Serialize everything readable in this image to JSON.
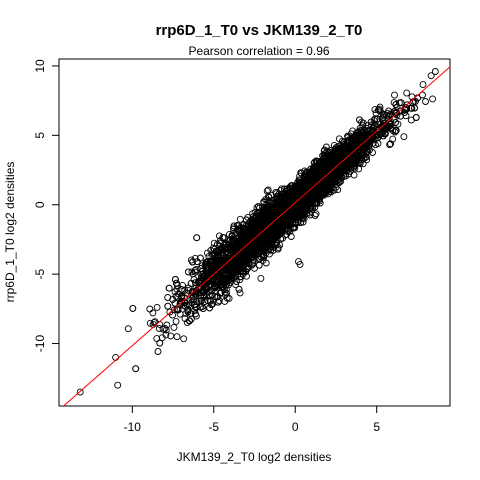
{
  "chart_data": {
    "type": "scatter",
    "title": "rrp6D_1_T0 vs JKM139_2_T0",
    "subtitle": "Pearson correlation =  0.96",
    "xlabel": "JKM139_2_T0 log2 densities",
    "ylabel": "rrp6D_1_T0 log2 densities",
    "xlim": [
      -14.5,
      9.5
    ],
    "ylim": [
      -14.5,
      10.5
    ],
    "xticks": [
      -10,
      -5,
      0,
      5
    ],
    "yticks": [
      -10,
      -5,
      0,
      5,
      10
    ],
    "grid": false,
    "legend": "none",
    "regression_line": {
      "slope": 1.03,
      "intercept": 0.15,
      "color": "#ff0000"
    },
    "point_color": "#000000",
    "distribution": {
      "x_center": -0.5,
      "x_sd": 2.8,
      "x_min": -13.2,
      "x_max": 8.6,
      "residual_sd": 0.7,
      "approx_points": 5000
    },
    "outliers": [
      {
        "x": 8.6,
        "y": 9.6
      },
      {
        "x": -13.2,
        "y": -13.5
      },
      {
        "x": -10.9,
        "y": -13.0
      },
      {
        "x": 0.3,
        "y": -4.3
      },
      {
        "x": 0.2,
        "y": -4.1
      }
    ]
  }
}
